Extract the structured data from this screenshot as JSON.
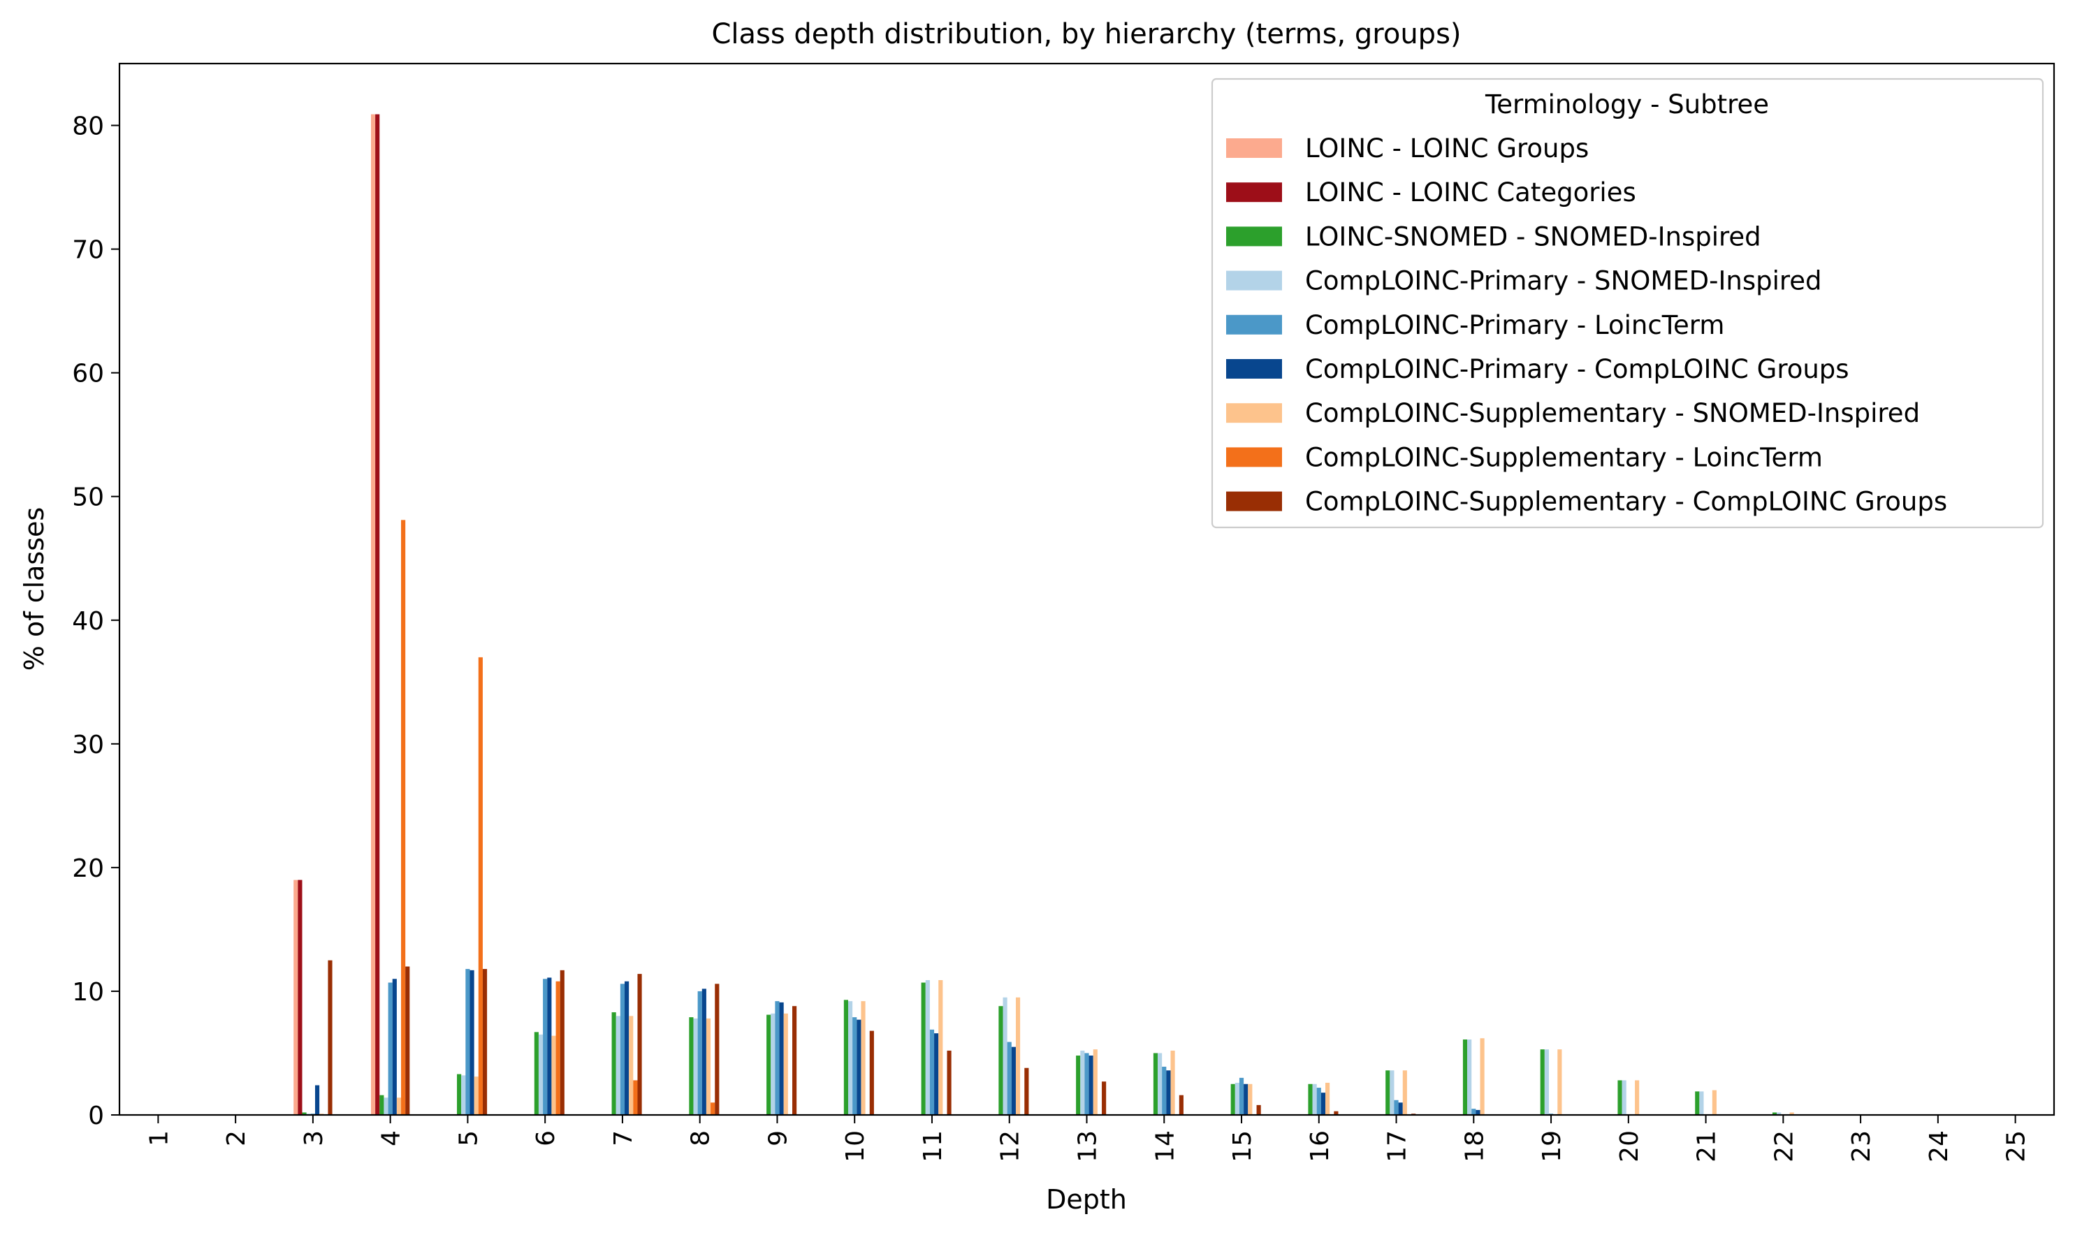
{
  "chart_data": {
    "type": "bar",
    "title": "Class depth distribution, by hierarchy (terms, groups)",
    "xlabel": "Depth",
    "ylabel": "% of classes",
    "ylim": [
      0,
      85
    ],
    "yticks": [
      0,
      10,
      20,
      30,
      40,
      50,
      60,
      70,
      80
    ],
    "grid": false,
    "legend_title": "Terminology - Subtree",
    "legend_position": "top-right",
    "categories": [
      "1",
      "2",
      "3",
      "4",
      "5",
      "6",
      "7",
      "8",
      "9",
      "10",
      "11",
      "12",
      "13",
      "14",
      "15",
      "16",
      "17",
      "18",
      "19",
      "20",
      "21",
      "22",
      "23",
      "24",
      "25"
    ],
    "series": [
      {
        "name": "LOINC - LOINC Groups",
        "color": "#fcaa8e",
        "values": [
          0,
          0,
          19.0,
          80.9,
          0,
          0,
          0,
          0,
          0,
          0,
          0,
          0,
          0,
          0,
          0,
          0,
          0,
          0,
          0,
          0,
          0,
          0,
          0,
          0,
          0
        ]
      },
      {
        "name": "LOINC - LOINC Categories",
        "color": "#9d0e18",
        "values": [
          0,
          0,
          19.0,
          80.9,
          0,
          0,
          0,
          0,
          0,
          0,
          0,
          0,
          0,
          0,
          0,
          0,
          0,
          0,
          0,
          0,
          0,
          0,
          0,
          0,
          0
        ]
      },
      {
        "name": "LOINC-SNOMED - SNOMED-Inspired",
        "color": "#2ca02c",
        "values": [
          0,
          0,
          0.2,
          1.6,
          3.3,
          6.7,
          8.3,
          7.9,
          8.1,
          9.3,
          10.7,
          8.8,
          4.8,
          5.0,
          2.5,
          2.5,
          3.6,
          6.1,
          5.3,
          2.8,
          1.9,
          0.2,
          0,
          0,
          0
        ]
      },
      {
        "name": "CompLOINC-Primary - SNOMED-Inspired",
        "color": "#b3d3e8",
        "values": [
          0,
          0,
          0.1,
          1.4,
          3.2,
          6.5,
          8.0,
          7.8,
          8.2,
          9.2,
          10.9,
          9.5,
          5.2,
          5.0,
          2.6,
          2.5,
          3.6,
          6.1,
          5.3,
          2.8,
          1.9,
          0.2,
          0,
          0,
          0
        ]
      },
      {
        "name": "CompLOINC-Primary - LoincTerm",
        "color": "#4b98c8",
        "values": [
          0,
          0,
          0.1,
          10.7,
          11.8,
          11.0,
          10.6,
          10.0,
          9.2,
          7.9,
          6.9,
          5.9,
          5.0,
          3.9,
          3.0,
          2.2,
          1.2,
          0.5,
          0.1,
          0,
          0,
          0,
          0,
          0,
          0
        ]
      },
      {
        "name": "CompLOINC-Primary - CompLOINC Groups",
        "color": "#08468e",
        "values": [
          0,
          0,
          2.4,
          11.0,
          11.7,
          11.1,
          10.8,
          10.2,
          9.1,
          7.7,
          6.6,
          5.5,
          4.8,
          3.6,
          2.5,
          1.8,
          1.0,
          0.4,
          0,
          0,
          0,
          0,
          0,
          0,
          0
        ]
      },
      {
        "name": "CompLOINC-Supplementary - SNOMED-Inspired",
        "color": "#fdc38c",
        "values": [
          0,
          0,
          0.1,
          1.4,
          3.1,
          6.4,
          8.0,
          7.8,
          8.2,
          9.2,
          10.9,
          9.5,
          5.3,
          5.2,
          2.5,
          2.6,
          3.6,
          6.2,
          5.3,
          2.8,
          2.0,
          0.2,
          0,
          0,
          0
        ]
      },
      {
        "name": "CompLOINC-Supplementary - LoincTerm",
        "color": "#f3701a",
        "values": [
          0,
          0,
          0,
          48.1,
          37.0,
          10.8,
          2.8,
          1.0,
          0,
          0,
          0,
          0,
          0,
          0,
          0,
          0,
          0,
          0,
          0,
          0,
          0,
          0,
          0,
          0,
          0
        ]
      },
      {
        "name": "CompLOINC-Supplementary - CompLOINC Groups",
        "color": "#992e04",
        "values": [
          0,
          0,
          12.5,
          12.0,
          11.8,
          11.7,
          11.4,
          10.6,
          8.8,
          6.8,
          5.2,
          3.8,
          2.7,
          1.6,
          0.8,
          0.3,
          0.1,
          0,
          0,
          0,
          0,
          0,
          0,
          0,
          0
        ]
      }
    ]
  }
}
